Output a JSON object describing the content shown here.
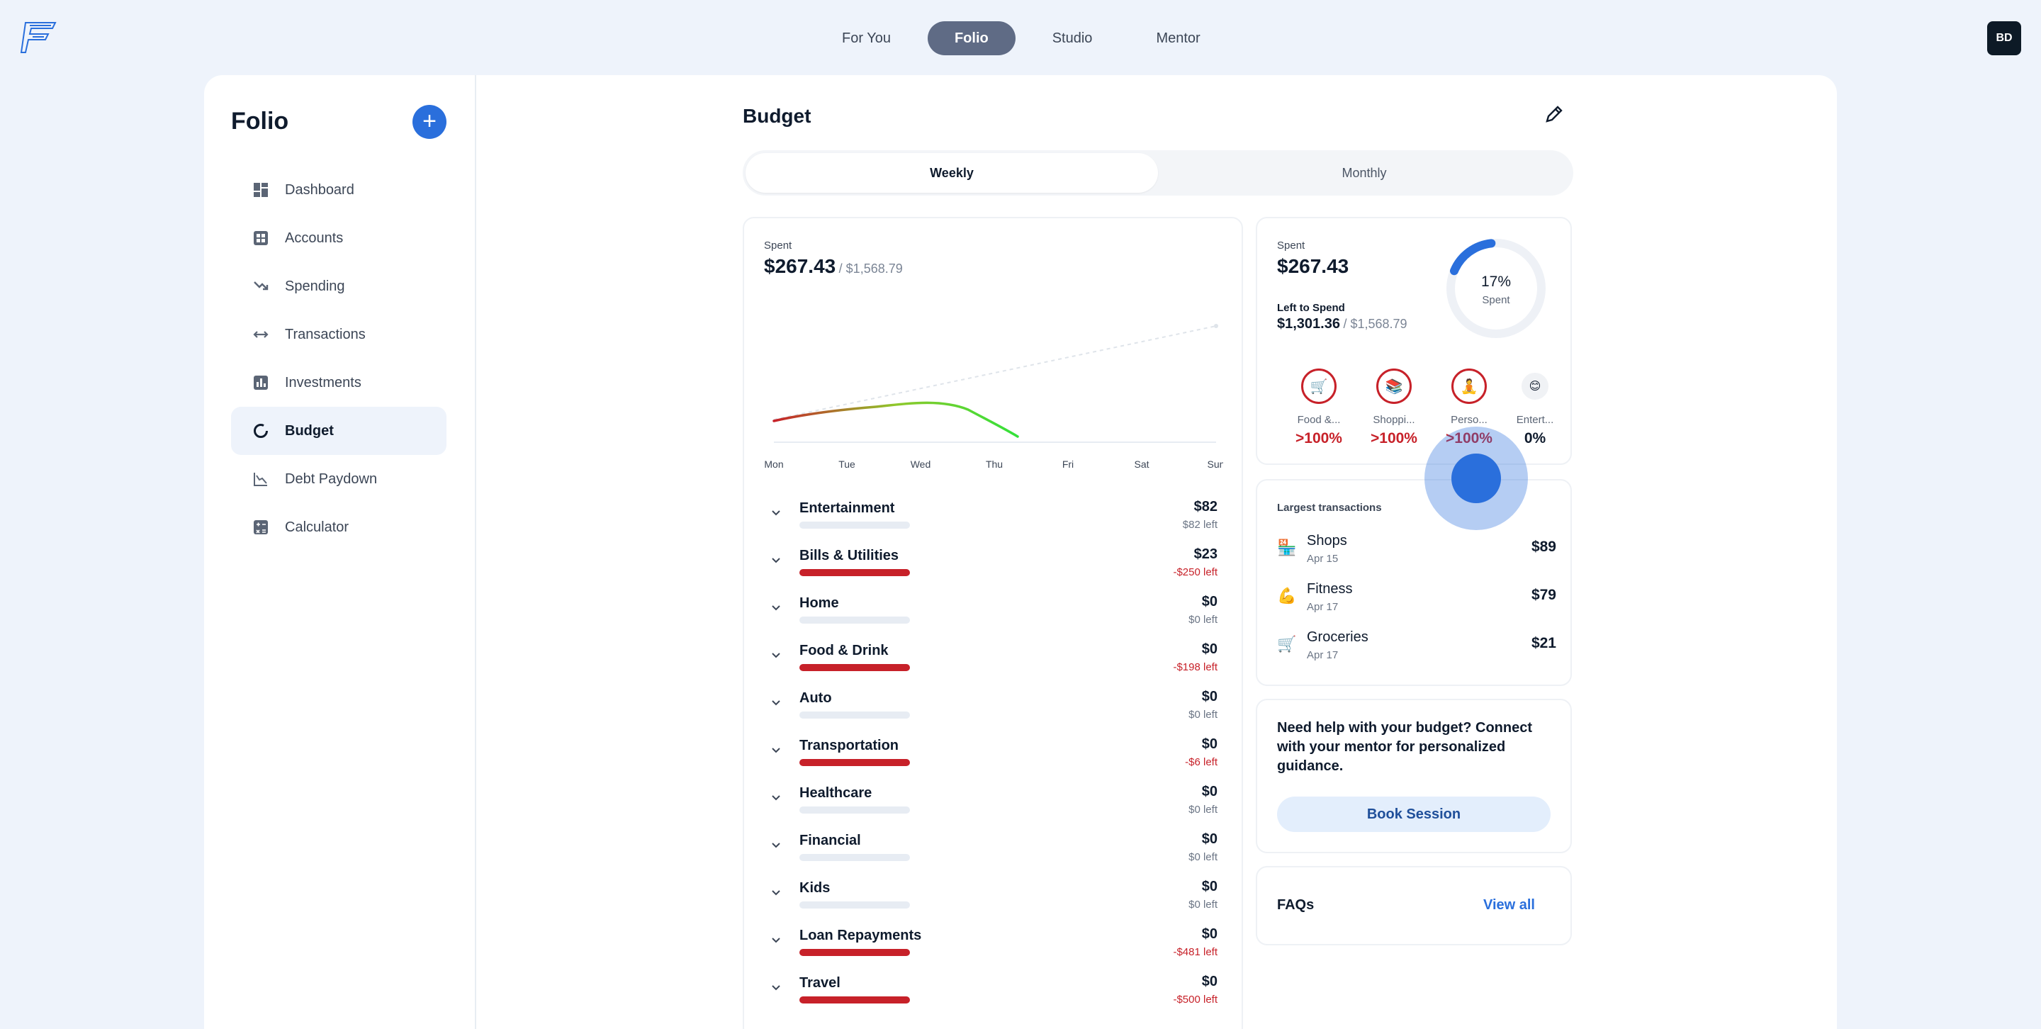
{
  "topnav": {
    "tabs": [
      {
        "label": "For You"
      },
      {
        "label": "Folio",
        "active": true
      },
      {
        "label": "Studio"
      },
      {
        "label": "Mentor"
      }
    ],
    "avatar_initials": "BD"
  },
  "sidebar": {
    "title": "Folio",
    "add_label": "+",
    "items": [
      {
        "label": "Dashboard",
        "icon": "dashboard-icon"
      },
      {
        "label": "Accounts",
        "icon": "accounts-icon"
      },
      {
        "label": "Spending",
        "icon": "spending-icon"
      },
      {
        "label": "Transactions",
        "icon": "transactions-icon"
      },
      {
        "label": "Investments",
        "icon": "investments-icon"
      },
      {
        "label": "Budget",
        "icon": "budget-icon",
        "active": true
      },
      {
        "label": "Debt Paydown",
        "icon": "debt-icon"
      },
      {
        "label": "Calculator",
        "icon": "calculator-icon"
      }
    ]
  },
  "budget": {
    "title": "Budget",
    "segments": [
      {
        "label": "Weekly",
        "active": true
      },
      {
        "label": "Monthly"
      }
    ],
    "spent_label": "Spent",
    "spent_value": "$267.43",
    "spent_total": "/ $1,568.79",
    "days": [
      "Mon",
      "Tue",
      "Wed",
      "Thu",
      "Fri",
      "Sat",
      "Sun"
    ],
    "categories": [
      {
        "name": "Entertainment",
        "amount": "$82",
        "left": "$82 left",
        "over": false
      },
      {
        "name": "Bills & Utilities",
        "amount": "$23",
        "left": "-$250 left",
        "over": true
      },
      {
        "name": "Home",
        "amount": "$0",
        "left": "$0 left",
        "over": false
      },
      {
        "name": "Food & Drink",
        "amount": "$0",
        "left": "-$198 left",
        "over": true
      },
      {
        "name": "Auto",
        "amount": "$0",
        "left": "$0 left",
        "over": false
      },
      {
        "name": "Transportation",
        "amount": "$0",
        "left": "-$6 left",
        "over": true
      },
      {
        "name": "Healthcare",
        "amount": "$0",
        "left": "$0 left",
        "over": false
      },
      {
        "name": "Financial",
        "amount": "$0",
        "left": "$0 left",
        "over": false
      },
      {
        "name": "Kids",
        "amount": "$0",
        "left": "$0 left",
        "over": false
      },
      {
        "name": "Loan Repayments",
        "amount": "$0",
        "left": "-$481 left",
        "over": true
      },
      {
        "name": "Travel",
        "amount": "$0",
        "left": "-$500 left",
        "over": true
      }
    ]
  },
  "summary": {
    "spent_label": "Spent",
    "spent_value": "$267.43",
    "left_label": "Left to Spend",
    "left_value": "$1,301.36",
    "left_total": "/ $1,568.79",
    "ring_percent": "17%",
    "ring_label": "Spent",
    "ring_fraction": 0.17,
    "accent": "#2a6fdc",
    "over_color": "#c72129",
    "category_icons": [
      {
        "name": "Food &...",
        "percent": ">100%",
        "emoji": "🛒",
        "over": true
      },
      {
        "name": "Shoppi...",
        "percent": ">100%",
        "emoji": "📚",
        "over": true
      },
      {
        "name": "Perso...",
        "percent": ">100%",
        "emoji": "🧘",
        "over": true
      },
      {
        "name": "Entert...",
        "percent": "0%",
        "emoji": "😊",
        "over": false
      }
    ]
  },
  "largest": {
    "title": "Largest transactions",
    "items": [
      {
        "name": "Shops",
        "date": "Apr 15",
        "amount": "$89",
        "emoji": "🏪"
      },
      {
        "name": "Fitness",
        "date": "Apr 17",
        "amount": "$79",
        "emoji": "💪"
      },
      {
        "name": "Groceries",
        "date": "Apr 17",
        "amount": "$21",
        "emoji": "🛒"
      }
    ]
  },
  "help": {
    "text": "Need help with your budget? Connect with your mentor for personalized guidance.",
    "button": "Book Session"
  },
  "faq": {
    "title": "FAQs",
    "link": "View all"
  }
}
